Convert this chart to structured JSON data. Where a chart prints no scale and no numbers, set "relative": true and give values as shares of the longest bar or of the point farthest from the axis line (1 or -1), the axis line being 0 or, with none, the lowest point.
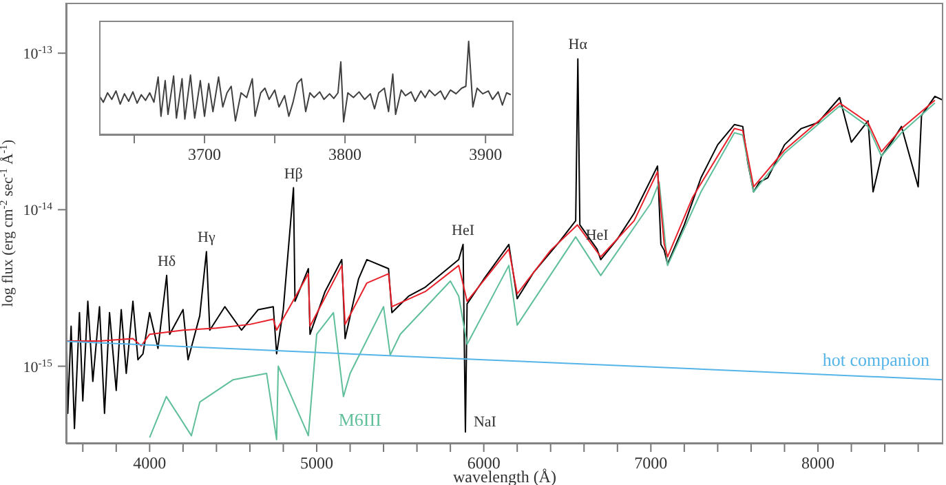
{
  "chart_data": [
    {
      "type": "line",
      "xlabel": "wavelength (Å)",
      "ylabel": "log flux (erg cm$^{-2}$ sec$^{-1}$ Å$^{-1}$)",
      "log": "y",
      "xlim": [
        3500,
        8750
      ],
      "ylim": [
        3.2e-16,
        2.1e-13
      ],
      "xticks": [
        {
          "value": 3600,
          "label": null
        },
        {
          "value": 3800,
          "label": null
        },
        4000,
        {
          "value": 4200,
          "label": null
        },
        {
          "value": 4400,
          "label": null
        },
        {
          "value": 4600,
          "label": null
        },
        {
          "value": 4800,
          "label": null
        },
        5000,
        {
          "value": 5200,
          "label": null
        },
        {
          "value": 5400,
          "label": null
        },
        {
          "value": 5600,
          "label": null
        },
        {
          "value": 5800,
          "label": null
        },
        6000,
        {
          "value": 6200,
          "label": null
        },
        {
          "value": 6400,
          "label": null
        },
        {
          "value": 6600,
          "label": null
        },
        {
          "value": 6800,
          "label": null
        },
        7000,
        {
          "value": 7200,
          "label": null
        },
        {
          "value": 7400,
          "label": null
        },
        {
          "value": 7600,
          "label": null
        },
        {
          "value": 7800,
          "label": null
        },
        8000,
        {
          "value": 8200,
          "label": null
        },
        {
          "value": 8400,
          "label": null
        },
        {
          "value": 8600,
          "label": null
        }
      ],
      "yticks": [
        {
          "value": 1e-15,
          "label": "10$^{-15}$"
        },
        {
          "value": 1e-14,
          "label": "10$^{-14}$"
        },
        {
          "value": 1e-13,
          "label": "10$^{-13}$"
        }
      ],
      "series": [
        {
          "color": "#000000",
          "x": [
            3500,
            3510,
            3530,
            3550,
            3580,
            3600,
            3630,
            3660,
            3700,
            3730,
            3760,
            3800,
            3830,
            3860,
            3900,
            3930,
            3960,
            4000,
            4050,
            4102,
            4120,
            4200,
            4230,
            4300,
            4340,
            4360,
            4450,
            4550,
            4650,
            4740,
            4760,
            4800,
            4861,
            4870,
            4950,
            4960,
            5050,
            5150,
            5170,
            5250,
            5300,
            5430,
            5450,
            5550,
            5650,
            5850,
            5876,
            5890,
            5900,
            6000,
            6150,
            6200,
            6300,
            6450,
            6550,
            6563,
            6575,
            6678,
            6700,
            6800,
            6900,
            7040,
            7060,
            7080,
            7100,
            7200,
            7300,
            7400,
            7500,
            7550,
            7580,
            7615,
            7650,
            7700,
            7800,
            7900,
            8000,
            8130,
            8200,
            8300,
            8330,
            8380,
            8450,
            8500,
            8600,
            8620,
            8700,
            8750
          ],
          "values": [
            2.5e-15,
            5e-16,
            1.8e-15,
            4e-16,
            2.2e-15,
            6e-16,
            2.6e-15,
            8e-16,
            2.4e-15,
            5e-16,
            2.2e-15,
            7e-16,
            2.3e-15,
            9e-16,
            2.6e-15,
            1.1e-15,
            1.2e-15,
            2.2e-15,
            1.3e-15,
            3.8e-15,
            1.6e-15,
            2.3e-15,
            1.1e-15,
            2.1e-15,
            5.4e-15,
            1.7e-15,
            2.4e-15,
            1.7e-15,
            2.3e-15,
            2.4e-15,
            1.2e-15,
            2.3e-15,
            1.38e-14,
            2.6e-15,
            4.2e-15,
            1.6e-15,
            3e-15,
            4.8e-15,
            1.5e-15,
            3.6e-15,
            4.8e-15,
            4.2e-15,
            2.2e-15,
            2.8e-15,
            3.2e-15,
            4.8e-15,
            6e-15,
            3.8e-16,
            2.5e-15,
            3.6e-15,
            6e-15,
            2.7e-15,
            4e-15,
            6.2e-15,
            8.5e-15,
            9.2e-14,
            8e-15,
            5.6e-15,
            4.8e-15,
            6.5e-15,
            9.5e-15,
            1.9e-14,
            6e-15,
            5.5e-15,
            4.5e-15,
            8e-15,
            1.6e-14,
            2.6e-14,
            3.5e-14,
            3.4e-14,
            2e-14,
            1.3e-14,
            1.5e-14,
            1.6e-14,
            2.6e-14,
            3.3e-14,
            3.6e-14,
            5.2e-14,
            2.7e-14,
            3.7e-14,
            1.3e-14,
            2.2e-14,
            2.8e-14,
            3.4e-14,
            1.4e-14,
            4e-14,
            5.3e-14,
            5e-14
          ]
        },
        {
          "color": "#5fbf9a",
          "name": "M6III",
          "x": [
            4000,
            4100,
            4250,
            4300,
            4500,
            4700,
            4760,
            4770,
            4950,
            5000,
            5100,
            5160,
            5200,
            5400,
            5440,
            5500,
            5800,
            5850,
            5900,
            6150,
            6200,
            6550,
            6700,
            7000,
            7050,
            7100,
            7300,
            7500,
            7550,
            7615,
            7800,
            8130,
            8300,
            8380,
            8500,
            8700
          ],
          "values": [
            3.5e-16,
            6.4e-16,
            3.6e-16,
            5.9e-16,
            8.2e-16,
            9e-16,
            3.4e-16,
            1e-15,
            3.6e-16,
            1.6e-15,
            2.2e-15,
            6.4e-16,
            9e-16,
            2.4e-15,
            1.18e-15,
            1.6e-15,
            3.5e-15,
            2.8e-15,
            1.38e-15,
            4.4e-15,
            1.83e-15,
            6.7e-15,
            3.8e-15,
            1.1e-14,
            1.5e-14,
            4.4e-15,
            1.3e-14,
            3.1e-14,
            3e-14,
            1.3e-14,
            2.3e-14,
            4.6e-14,
            3.4e-14,
            2.2e-14,
            3.1e-14,
            4.8e-14
          ]
        },
        {
          "color": "#e8202a",
          "x": [
            3500,
            3700,
            3900,
            3950,
            4000,
            4200,
            4400,
            4600,
            4740,
            4760,
            4950,
            4960,
            5150,
            5170,
            5300,
            5430,
            5450,
            5650,
            5850,
            5900,
            6150,
            6200,
            6400,
            6560,
            6700,
            6900,
            7040,
            7080,
            7100,
            7250,
            7500,
            7550,
            7615,
            7800,
            8130,
            8300,
            8380,
            8500,
            8700
          ],
          "values": [
            1.45e-15,
            1.45e-15,
            1.5e-15,
            1.35e-15,
            1.6e-15,
            1.7e-15,
            1.75e-15,
            1.85e-15,
            2e-15,
            1.7e-15,
            3.9e-15,
            1.8e-15,
            4.4e-15,
            1.85e-15,
            3.4e-15,
            3.9e-15,
            2.4e-15,
            3e-15,
            4.4e-15,
            2.6e-15,
            5.6e-15,
            2.9e-15,
            5.5e-15,
            8e-15,
            5e-15,
            8.5e-15,
            1.75e-14,
            6e-15,
            5e-15,
            1.2e-14,
            3.3e-14,
            3.2e-14,
            1.4e-14,
            2.4e-14,
            4.8e-14,
            3.6e-14,
            2.35e-14,
            3.3e-14,
            5e-14
          ]
        },
        {
          "color": "#55b4e8",
          "name": "hot companion",
          "x": [
            3500,
            6000,
            8750
          ],
          "values": [
            1.44e-15,
            1.1e-15,
            8.2e-16
          ]
        }
      ],
      "annotations": [
        {
          "text": "Hδ",
          "x": 4102,
          "y": 3.8e-15
        },
        {
          "text": "Hγ",
          "x": 4340,
          "y": 5.4e-15
        },
        {
          "text": "Hβ",
          "x": 4861,
          "y": 1.38e-14
        },
        {
          "text": "HeI",
          "x": 5876,
          "y": 6e-15
        },
        {
          "text": "Hα",
          "x": 6563,
          "y": 9.2e-14
        },
        {
          "text": "HeI",
          "x": 6678,
          "y": 5.6e-15
        },
        {
          "text": "NaI",
          "x": 5890,
          "y": 3.8e-16
        }
      ]
    },
    {
      "type": "line",
      "relative": true,
      "tick_labels": "x",
      "xlim": [
        3625,
        3920
      ],
      "xticks": [
        {
          "value": 3650,
          "label": null
        },
        3700,
        {
          "value": 3750,
          "label": null
        },
        3800,
        {
          "value": 3850,
          "label": null
        },
        3900
      ],
      "series": [
        {
          "color": "#404040",
          "x": [
            3625,
            3628,
            3631,
            3634,
            3637,
            3640,
            3643,
            3646,
            3649,
            3652,
            3655,
            3658,
            3661,
            3664,
            3667,
            3669,
            3672,
            3674,
            3678,
            3680,
            3684,
            3686,
            3690,
            3693,
            3697,
            3700,
            3703,
            3706,
            3710,
            3713,
            3716,
            3719,
            3722,
            3726,
            3730,
            3734,
            3736,
            3740,
            3743,
            3746,
            3750,
            3753,
            3757,
            3760,
            3763,
            3766,
            3769,
            3772,
            3775,
            3778,
            3782,
            3785,
            3789,
            3792,
            3795,
            3797,
            3799,
            3802,
            3806,
            3810,
            3814,
            3818,
            3821,
            3824,
            3828,
            3831,
            3834,
            3836,
            3840,
            3843,
            3847,
            3850,
            3854,
            3857,
            3860,
            3864,
            3868,
            3871,
            3875,
            3879,
            3883,
            3886,
            3888,
            3891,
            3894,
            3898,
            3902,
            3905,
            3909,
            3912,
            3915,
            3918
          ],
          "values": [
            0.42,
            0.35,
            0.45,
            0.38,
            0.47,
            0.33,
            0.44,
            0.36,
            0.46,
            0.34,
            0.43,
            0.37,
            0.45,
            0.35,
            0.62,
            0.2,
            0.58,
            0.22,
            0.63,
            0.18,
            0.6,
            0.17,
            0.64,
            0.18,
            0.58,
            0.2,
            0.55,
            0.25,
            0.62,
            0.3,
            0.45,
            0.52,
            0.15,
            0.45,
            0.4,
            0.6,
            0.2,
            0.45,
            0.5,
            0.38,
            0.48,
            0.3,
            0.42,
            0.2,
            0.35,
            0.55,
            0.6,
            0.25,
            0.45,
            0.4,
            0.46,
            0.38,
            0.44,
            0.39,
            0.45,
            0.78,
            0.14,
            0.45,
            0.4,
            0.46,
            0.38,
            0.44,
            0.28,
            0.45,
            0.5,
            0.25,
            0.65,
            0.22,
            0.48,
            0.42,
            0.46,
            0.36,
            0.47,
            0.4,
            0.48,
            0.42,
            0.47,
            0.38,
            0.48,
            0.44,
            0.5,
            0.52,
            1.0,
            0.3,
            0.5,
            0.44,
            0.47,
            0.38,
            0.46,
            0.32,
            0.45,
            0.43
          ]
        }
      ]
    }
  ]
}
